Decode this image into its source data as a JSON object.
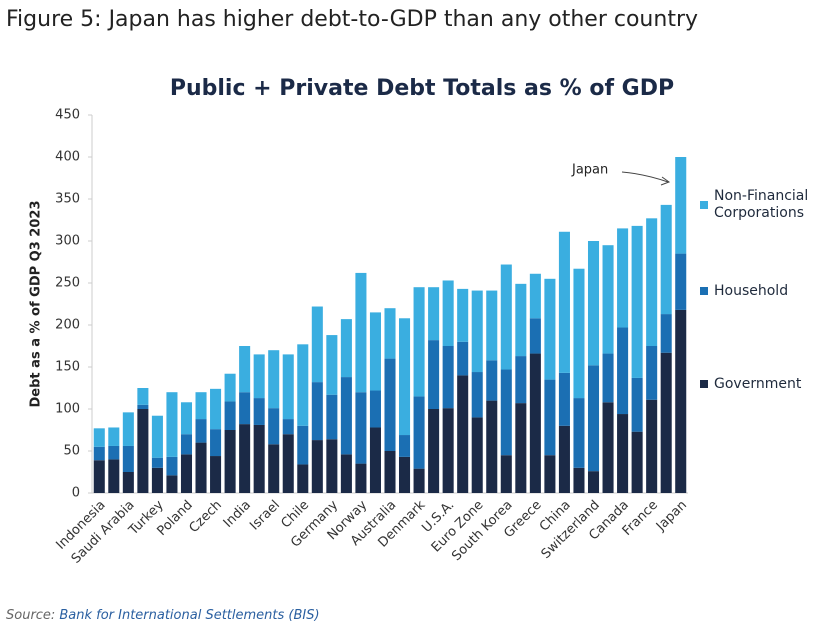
{
  "header": {
    "title": "Figure 5: Japan has higher debt-to-GDP than any other country"
  },
  "chart_data": {
    "type": "stacked_bar",
    "title": "Public + Private Debt Totals as % of GDP",
    "y_label": "Debt as a % of GDP Q3 2023",
    "annotation": "Japan",
    "categories": [
      "Indonesia",
      null,
      "Saudi Arabia",
      null,
      "Turkey",
      null,
      "Poland",
      null,
      "Czech",
      null,
      "India",
      null,
      "Israel",
      null,
      "Chile",
      null,
      "Germany",
      null,
      "Norway",
      null,
      "Australia",
      null,
      "Denmark",
      null,
      "U.S.A.",
      null,
      "Euro Zone",
      null,
      "South Korea",
      null,
      "Greece",
      null,
      "China",
      null,
      "Switzerland",
      null,
      "Canada",
      null,
      "France",
      null,
      "Japan"
    ],
    "series": [
      {
        "name": "Government",
        "color": "#1b2a47",
        "values": [
          39,
          40,
          25,
          100,
          30,
          21,
          46,
          60,
          44,
          75,
          82,
          81,
          58,
          70,
          34,
          63,
          64,
          46,
          35,
          78,
          50,
          43,
          29,
          100,
          101,
          140,
          90,
          110,
          45,
          107,
          166,
          45,
          80,
          30,
          26,
          108,
          94,
          73,
          111,
          167,
          218
        ]
      },
      {
        "name": "Household",
        "color": "#1b6fb3",
        "values": [
          16,
          16,
          31,
          5,
          12,
          22,
          24,
          28,
          32,
          34,
          38,
          32,
          43,
          18,
          46,
          69,
          53,
          92,
          85,
          44,
          110,
          26,
          86,
          82,
          74,
          40,
          54,
          48,
          102,
          56,
          42,
          90,
          63,
          83,
          126,
          58,
          103,
          64,
          64,
          46,
          67
        ]
      },
      {
        "name": "Non-Financial Corporations",
        "color": "#3aaee0",
        "values": [
          22,
          22,
          40,
          20,
          50,
          77,
          38,
          32,
          48,
          33,
          55,
          52,
          69,
          77,
          97,
          90,
          71,
          69,
          142,
          93,
          60,
          139,
          130,
          63,
          78,
          63,
          97,
          83,
          125,
          86,
          53,
          120,
          168,
          154,
          148,
          129,
          118,
          181,
          152,
          130,
          115
        ]
      }
    ],
    "ylim": [
      0,
      450
    ],
    "yticks": [
      0,
      50,
      100,
      150,
      200,
      250,
      300,
      350,
      400,
      450
    ],
    "grid": false
  },
  "source": {
    "label": "Source:",
    "text": "Bank for International Settlements (BIS)"
  }
}
